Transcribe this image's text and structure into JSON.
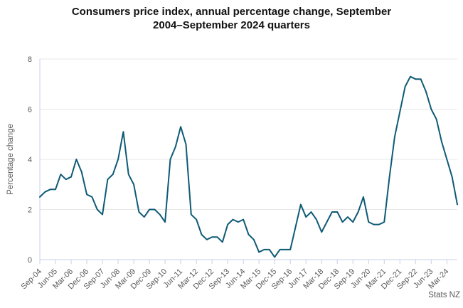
{
  "title_lines": [
    "Consumers price index, annual percentage change, September",
    "2004–September 2024 quarters"
  ],
  "source": "Stats NZ",
  "colors": {
    "line": "#0e5a76",
    "grid": "#e7e7e7",
    "axis": "#c8d0e8",
    "tick_text": "#595959",
    "title_text": "#121212"
  },
  "chart_data": {
    "type": "line",
    "title": "Consumers price index, annual percentage change, September 2004–September 2024 quarters",
    "xlabel": "",
    "ylabel": "Percentage change",
    "ylim": [
      0,
      8
    ],
    "yticks": [
      0,
      2,
      4,
      6,
      8
    ],
    "grid": "horizontal",
    "legend_position": "none",
    "tick_every": 3,
    "x": [
      "Sep-04",
      "Dec-04",
      "Mar-05",
      "Jun-05",
      "Sep-05",
      "Dec-05",
      "Mar-06",
      "Jun-06",
      "Sep-06",
      "Dec-06",
      "Mar-07",
      "Jun-07",
      "Sep-07",
      "Dec-07",
      "Mar-08",
      "Jun-08",
      "Sep-08",
      "Dec-08",
      "Mar-09",
      "Jun-09",
      "Sep-09",
      "Dec-09",
      "Mar-10",
      "Jun-10",
      "Sep-10",
      "Dec-10",
      "Mar-11",
      "Jun-11",
      "Sep-11",
      "Dec-11",
      "Mar-12",
      "Jun-12",
      "Sep-12",
      "Dec-12",
      "Mar-13",
      "Jun-13",
      "Sep-13",
      "Dec-13",
      "Mar-14",
      "Jun-14",
      "Sep-14",
      "Dec-14",
      "Mar-15",
      "Jun-15",
      "Sep-15",
      "Dec-15",
      "Mar-16",
      "Jun-16",
      "Sep-16",
      "Dec-16",
      "Mar-17",
      "Jun-17",
      "Sep-17",
      "Dec-17",
      "Mar-18",
      "Jun-18",
      "Sep-18",
      "Dec-18",
      "Mar-19",
      "Jun-19",
      "Sep-19",
      "Dec-19",
      "Mar-20",
      "Jun-20",
      "Sep-20",
      "Dec-20",
      "Mar-21",
      "Jun-21",
      "Sep-21",
      "Dec-21",
      "Mar-22",
      "Jun-22",
      "Sep-22",
      "Dec-22",
      "Mar-23",
      "Jun-23",
      "Sep-23",
      "Dec-23",
      "Mar-24",
      "Jun-24",
      "Sep-24"
    ],
    "x_tick_labels": [
      "Sep-04",
      "Jun-05",
      "Mar-06",
      "Dec-06",
      "Sep-07",
      "Jun-08",
      "Mar-09",
      "Dec-09",
      "Sep-10",
      "Jun-11",
      "Mar-12",
      "Dec-12",
      "Sep-13",
      "Jun-14",
      "Mar-15",
      "Dec-15",
      "Sep-16",
      "Jun-17",
      "Mar-18",
      "Dec-18",
      "Sep-19",
      "Jun-20",
      "Mar-21",
      "Dec-21",
      "Sep-22",
      "Jun-23",
      "Mar-24"
    ],
    "series": [
      {
        "name": "CPI annual percentage change",
        "values": [
          2.5,
          2.7,
          2.8,
          2.8,
          3.4,
          3.2,
          3.3,
          4.0,
          3.5,
          2.6,
          2.5,
          2.0,
          1.8,
          3.2,
          3.4,
          4.0,
          5.1,
          3.4,
          3.0,
          1.9,
          1.7,
          2.0,
          2.0,
          1.8,
          1.5,
          4.0,
          4.5,
          5.3,
          4.6,
          1.8,
          1.6,
          1.0,
          0.8,
          0.9,
          0.9,
          0.7,
          1.4,
          1.6,
          1.5,
          1.6,
          1.0,
          0.8,
          0.3,
          0.4,
          0.4,
          0.1,
          0.4,
          0.4,
          0.4,
          1.3,
          2.2,
          1.7,
          1.9,
          1.6,
          1.1,
          1.5,
          1.9,
          1.9,
          1.5,
          1.7,
          1.5,
          1.9,
          2.5,
          1.5,
          1.4,
          1.4,
          1.5,
          3.3,
          4.9,
          5.9,
          6.9,
          7.3,
          7.2,
          7.2,
          6.7,
          6.0,
          5.6,
          4.7,
          4.0,
          3.3,
          2.2
        ]
      }
    ]
  }
}
